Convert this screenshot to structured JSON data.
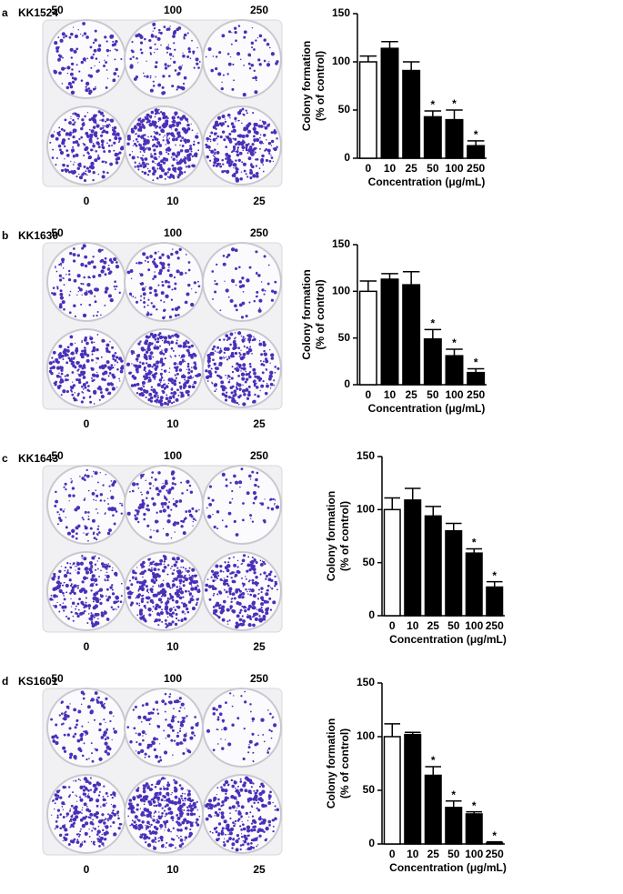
{
  "chart_data": [
    {
      "type": "bar",
      "panel": "a",
      "title": "KK1524",
      "plate_labels": [
        "50",
        "100",
        "250",
        "0",
        "10",
        "25"
      ],
      "ylabel": [
        "Colony formation",
        "(% of control)"
      ],
      "xlabel": "Concentration (μg/mL)",
      "categories": [
        "0",
        "10",
        "25",
        "50",
        "100",
        "250"
      ],
      "values": [
        100,
        114,
        91,
        43,
        40,
        13
      ],
      "errors": [
        6,
        7,
        9,
        6,
        10,
        5
      ],
      "significance": [
        null,
        null,
        null,
        "*",
        "*",
        "*"
      ],
      "colors": [
        "#ffffff",
        "#000000",
        "#000000",
        "#000000",
        "#000000",
        "#000000"
      ],
      "ylim": [
        0,
        150
      ],
      "yticks": [
        0,
        50,
        100,
        150
      ]
    },
    {
      "type": "bar",
      "panel": "b",
      "title": "KK1630",
      "plate_labels": [
        "50",
        "100",
        "250",
        "0",
        "10",
        "25"
      ],
      "ylabel": [
        "Colony formation",
        "(% of control)"
      ],
      "xlabel": "Concentration (μg/mL)",
      "categories": [
        "0",
        "10",
        "25",
        "50",
        "100",
        "250"
      ],
      "values": [
        100,
        113,
        107,
        49,
        31,
        13
      ],
      "errors": [
        11,
        6,
        14,
        10,
        7,
        4
      ],
      "significance": [
        null,
        null,
        null,
        "*",
        "*",
        "*"
      ],
      "colors": [
        "#ffffff",
        "#000000",
        "#000000",
        "#000000",
        "#000000",
        "#000000"
      ],
      "ylim": [
        0,
        150
      ],
      "yticks": [
        0,
        50,
        100,
        150
      ]
    },
    {
      "type": "bar",
      "panel": "c",
      "title": "KK1643",
      "plate_labels": [
        "50",
        "100",
        "250",
        "0",
        "10",
        "25"
      ],
      "ylabel": [
        "Colony formation",
        "(% of control)"
      ],
      "xlabel": "Concentration (μg/mL)",
      "categories": [
        "0",
        "10",
        "25",
        "50",
        "100",
        "250"
      ],
      "values": [
        100,
        109,
        94,
        80,
        59,
        27
      ],
      "errors": [
        11,
        11,
        9,
        7,
        4,
        5
      ],
      "significance": [
        null,
        null,
        null,
        null,
        "*",
        "*"
      ],
      "colors": [
        "#ffffff",
        "#000000",
        "#000000",
        "#000000",
        "#000000",
        "#000000"
      ],
      "ylim": [
        0,
        150
      ],
      "yticks": [
        0,
        50,
        100,
        150
      ]
    },
    {
      "type": "bar",
      "panel": "d",
      "title": "KS1601",
      "plate_labels": [
        "50",
        "100",
        "250",
        "0",
        "10",
        "25"
      ],
      "ylabel": [
        "Colony formation",
        "(% of control)"
      ],
      "xlabel": "Concentration (μg/mL)",
      "categories": [
        "0",
        "10",
        "25",
        "50",
        "100",
        "250"
      ],
      "values": [
        100,
        102,
        64,
        34,
        28,
        1
      ],
      "errors": [
        12,
        2,
        8,
        6,
        2,
        1
      ],
      "significance": [
        null,
        null,
        "*",
        "*",
        "*",
        "*"
      ],
      "colors": [
        "#ffffff",
        "#000000",
        "#000000",
        "#000000",
        "#000000",
        "#000000"
      ],
      "ylim": [
        0,
        150
      ],
      "yticks": [
        0,
        50,
        100,
        150
      ]
    }
  ]
}
